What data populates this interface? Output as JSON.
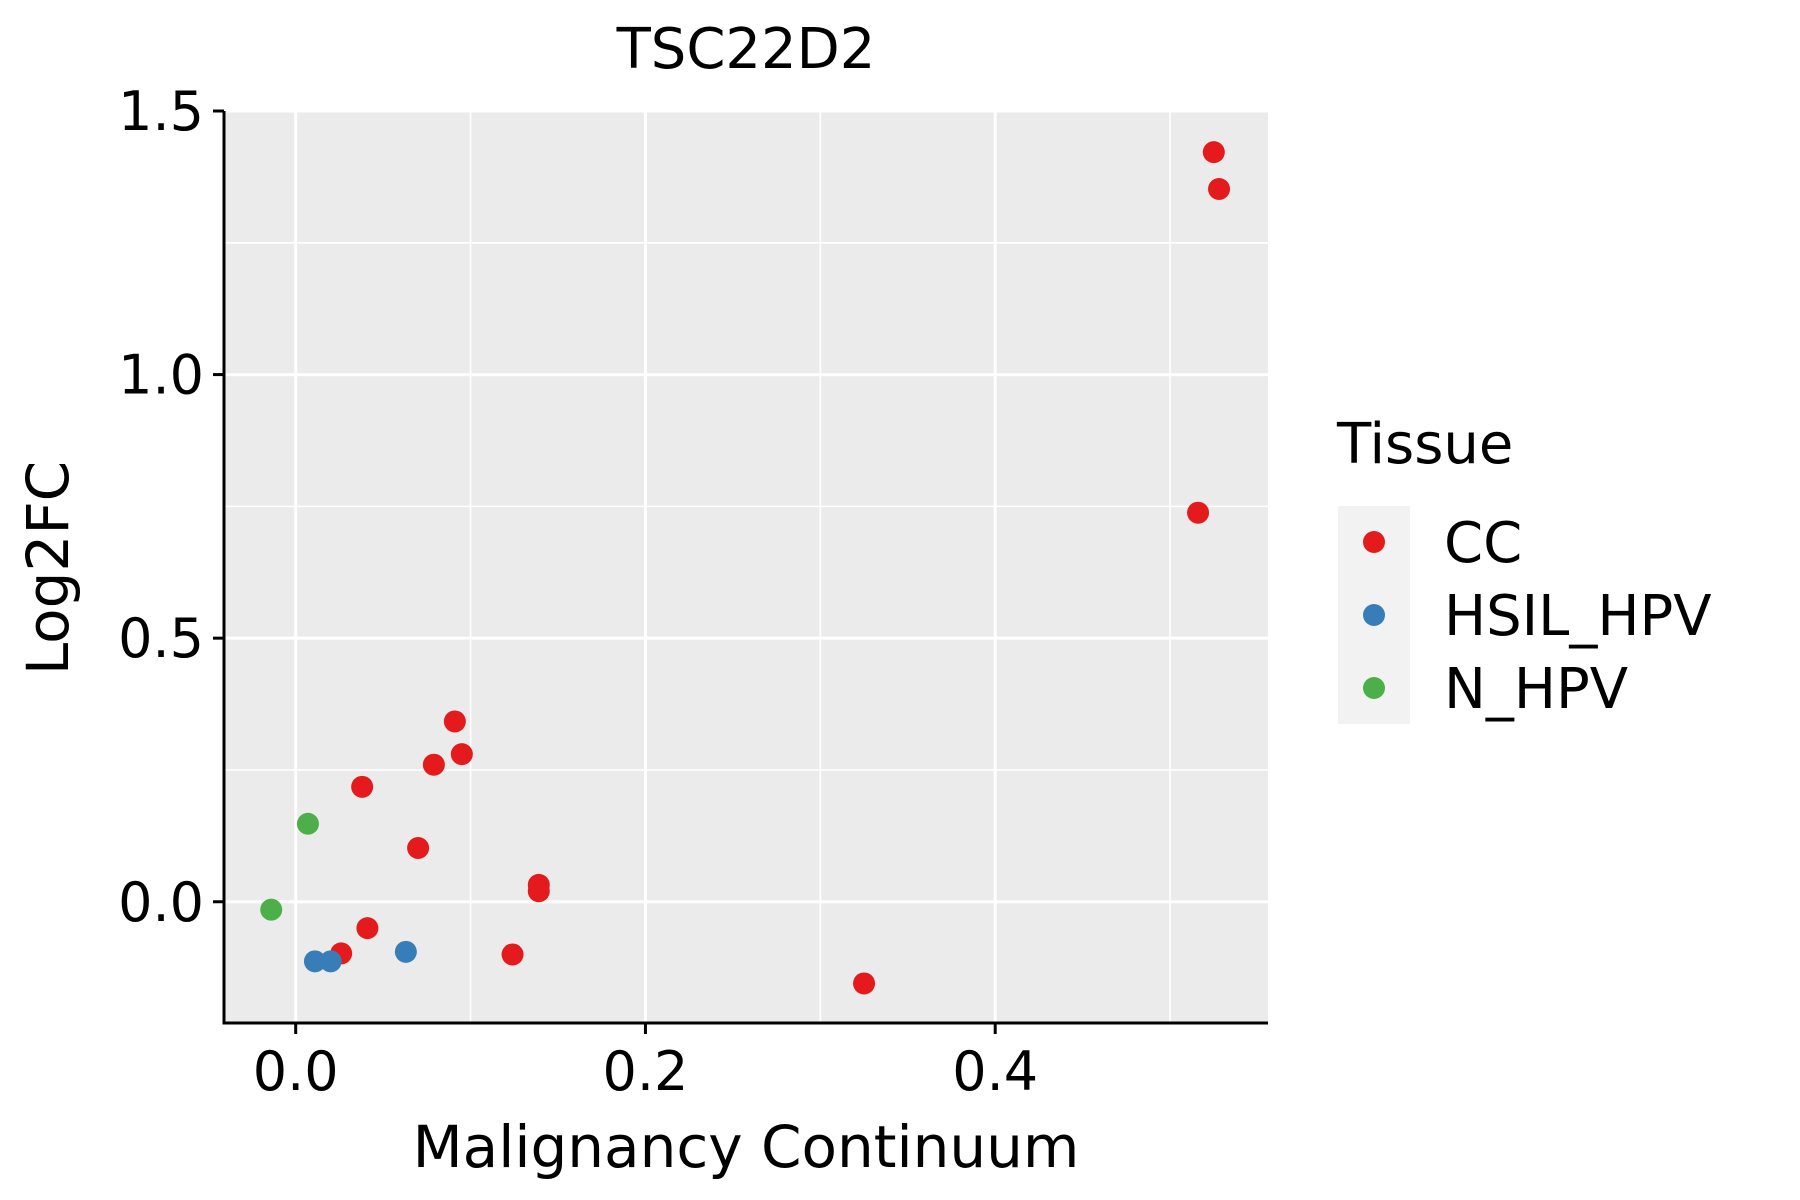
{
  "chart_data": {
    "type": "scatter",
    "title": "TSC22D2",
    "xlabel": "Malignancy Continuum",
    "ylabel": "Log2FC",
    "xlim": [
      -0.041,
      0.556
    ],
    "ylim": [
      -0.23,
      1.5
    ],
    "x_ticks": [
      0.0,
      0.2,
      0.4
    ],
    "x_tick_labels": [
      "0.0",
      "0.2",
      "0.4"
    ],
    "y_ticks": [
      0.0,
      0.5,
      1.0,
      1.5
    ],
    "y_tick_labels": [
      "0.0",
      "0.5",
      "1.0",
      "1.5"
    ],
    "grid": true,
    "legend": {
      "title": "Tissue",
      "placement": "right",
      "entries": [
        {
          "name": "CC",
          "color": "#E41A1C"
        },
        {
          "name": "HSIL_HPV",
          "color": "#377EB8"
        },
        {
          "name": "N_HPV",
          "color": "#4DAF4A"
        }
      ]
    },
    "series": [
      {
        "name": "CC",
        "color": "#E41A1C",
        "points": [
          {
            "x": 0.026,
            "y": -0.098
          },
          {
            "x": 0.038,
            "y": 0.218
          },
          {
            "x": 0.041,
            "y": -0.05
          },
          {
            "x": 0.07,
            "y": 0.102
          },
          {
            "x": 0.079,
            "y": 0.26
          },
          {
            "x": 0.091,
            "y": 0.342
          },
          {
            "x": 0.095,
            "y": 0.28
          },
          {
            "x": 0.124,
            "y": -0.1
          },
          {
            "x": 0.139,
            "y": 0.032
          },
          {
            "x": 0.139,
            "y": 0.02
          },
          {
            "x": 0.325,
            "y": -0.155
          },
          {
            "x": 0.516,
            "y": 0.738
          },
          {
            "x": 0.525,
            "y": 1.422
          },
          {
            "x": 0.528,
            "y": 1.352
          }
        ]
      },
      {
        "name": "HSIL_HPV",
        "color": "#377EB8",
        "points": [
          {
            "x": 0.011,
            "y": -0.113
          },
          {
            "x": 0.02,
            "y": -0.113
          },
          {
            "x": 0.063,
            "y": -0.095
          }
        ]
      },
      {
        "name": "N_HPV",
        "color": "#4DAF4A",
        "points": [
          {
            "x": -0.014,
            "y": -0.015
          },
          {
            "x": 0.007,
            "y": 0.148
          }
        ]
      }
    ]
  }
}
